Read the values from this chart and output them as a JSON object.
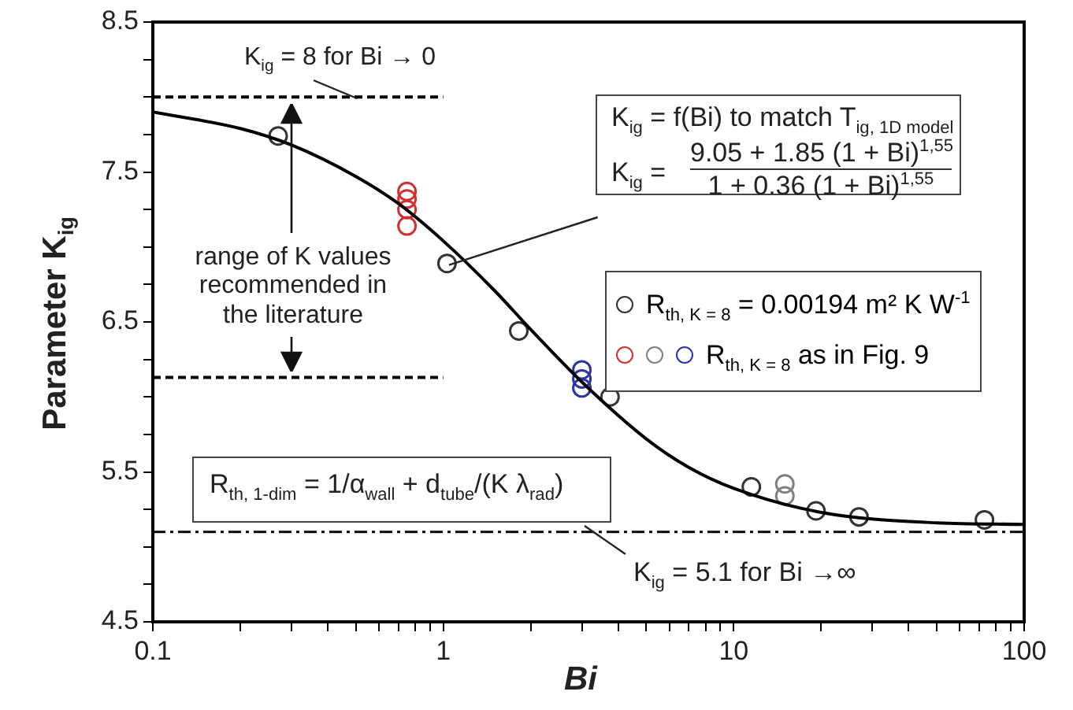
{
  "chart_data": {
    "type": "scatter",
    "xlabel": "Bi",
    "ylabel": "Parameter K$_{ig}$",
    "log": "x",
    "marker": "circle",
    "legend": "right",
    "xlim": [
      0.1,
      100
    ],
    "xticks": [
      0.1,
      {
        "value": 0.2,
        "label": null
      },
      {
        "value": 0.3,
        "label": null
      },
      {
        "value": 0.4,
        "label": null
      },
      {
        "value": 0.5,
        "label": null
      },
      {
        "value": 0.6,
        "label": null
      },
      {
        "value": 0.7,
        "label": null
      },
      {
        "value": 0.8,
        "label": null
      },
      {
        "value": 0.9,
        "label": null
      },
      1,
      {
        "value": 2,
        "label": null
      },
      {
        "value": 3,
        "label": null
      },
      {
        "value": 4,
        "label": null
      },
      {
        "value": 5,
        "label": null
      },
      {
        "value": 6,
        "label": null
      },
      {
        "value": 7,
        "label": null
      },
      {
        "value": 8,
        "label": null
      },
      {
        "value": 9,
        "label": null
      },
      10,
      {
        "value": 20,
        "label": null
      },
      {
        "value": 30,
        "label": null
      },
      {
        "value": 40,
        "label": null
      },
      {
        "value": 50,
        "label": null
      },
      {
        "value": 60,
        "label": null
      },
      {
        "value": 70,
        "label": null
      },
      {
        "value": 80,
        "label": null
      },
      {
        "value": 90,
        "label": null
      },
      100
    ],
    "ylim": [
      4.5,
      8.5
    ],
    "yticks": [
      4.5,
      {
        "value": 4.75,
        "label": null
      },
      {
        "value": 5,
        "label": null
      },
      {
        "value": 5.25,
        "label": null
      },
      5.5,
      {
        "value": 5.75,
        "label": null
      },
      {
        "value": 6,
        "label": null
      },
      {
        "value": 6.25,
        "label": null
      },
      6.5,
      {
        "value": 6.75,
        "label": null
      },
      {
        "value": 7,
        "label": null
      },
      {
        "value": 7.25,
        "label": null
      },
      7.5,
      {
        "value": 7.75,
        "label": null
      },
      {
        "value": 8,
        "label": null
      },
      {
        "value": 8.25,
        "label": null
      },
      8.5
    ],
    "series": [
      {
        "type": "line",
        "marker": "none",
        "color": "#000000",
        "x": [
          0.1,
          0.2,
          0.3,
          0.5,
          0.7,
          1,
          1.5,
          2,
          3,
          5,
          7,
          10,
          20,
          50,
          100
        ],
        "values": [
          7.9,
          7.79,
          7.68,
          7.47,
          7.29,
          7.04,
          6.71,
          6.45,
          6.1,
          5.72,
          5.53,
          5.39,
          5.23,
          5.16,
          5.15
        ]
      },
      {
        "type": "line",
        "marker": "none",
        "line_style": "dashed",
        "color": "#000000",
        "x": [
          0.1,
          1
        ],
        "values": [
          8,
          8
        ]
      },
      {
        "type": "line",
        "marker": "none",
        "line_style": "dashed",
        "color": "#000000",
        "x": [
          0.1,
          1
        ],
        "values": [
          6.13,
          6.13
        ]
      },
      {
        "name": "R$_{th, K = 8}$ = 0.00194 m² K W$^{-1}$",
        "color": "#333333",
        "x": [
          0.27,
          1.03,
          1.82,
          3.75,
          11.5,
          19.2,
          27,
          73
        ],
        "values": [
          7.74,
          6.89,
          6.44,
          6.0,
          5.4,
          5.24,
          5.2,
          5.18
        ]
      },
      {
        "name": "R$_{th, K = 8}$ as in Fig. 9",
        "colors": [
          "#d03030",
          "#d03030",
          "#d03030",
          "#d03030",
          "#808080",
          "#808080",
          "#2c35a8",
          "#2c35a8",
          "#2c35a8"
        ],
        "x": [
          0.75,
          0.75,
          0.75,
          0.75,
          15,
          15,
          3,
          3,
          3
        ],
        "values": [
          7.37,
          7.32,
          7.25,
          7.14,
          5.42,
          5.34,
          6.18,
          6.12,
          6.06
        ]
      }
    ],
    "ref_lines": [
      {
        "axis": "y",
        "value": 5.1,
        "line_style": "dashed",
        "label": "K$_{ig}$ = 5.1 for Bi →∞"
      }
    ],
    "annotations": [
      {
        "text": "K$_{ig}$ = 8 for Bi → 0",
        "x": 0.5,
        "y": 8
      },
      "range of K values recommended in the literature",
      "K$_{ig}$ = f(Bi) to match T$_{ig, 1D model}$",
      {
        "text": "K$_{ig}$ =",
        "x": 1.03,
        "y": 6.89
      },
      "9.05 + 1.85 (1 + Bi)$^{1,55}$",
      "1 + 0.36 (1 + Bi)$^{1,55}$",
      "R$_{th, 1-dim}$ = 1/α$_{wall}$ + d$_{tube}$/(K λ$_{rad}$)"
    ]
  }
}
